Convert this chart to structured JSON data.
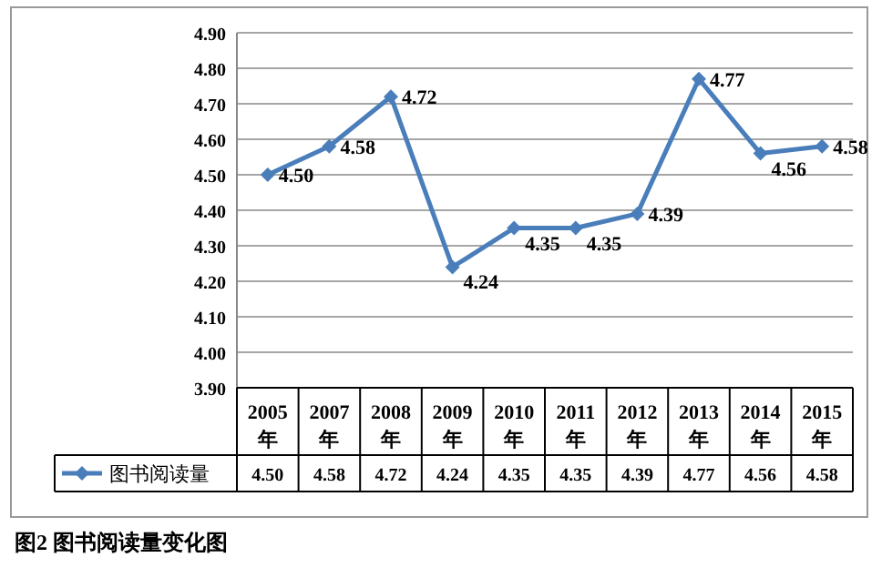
{
  "chart_data": {
    "type": "line",
    "categories": [
      "2005年",
      "2007年",
      "2008年",
      "2009年",
      "2010年",
      "2011年",
      "2012年",
      "2013年",
      "2014年",
      "2015年"
    ],
    "series": [
      {
        "name": "图书阅读量",
        "color": "#4a7ebb",
        "values": [
          4.5,
          4.58,
          4.72,
          4.24,
          4.35,
          4.35,
          4.39,
          4.77,
          4.56,
          4.58
        ]
      }
    ],
    "ylim": [
      3.9,
      4.9
    ],
    "yticks": [
      {
        "value": 3.9,
        "label": "3.90"
      },
      {
        "value": 4.0,
        "label": "4.00"
      },
      {
        "value": 4.1,
        "label": "4.10"
      },
      {
        "value": 4.2,
        "label": "4.20"
      },
      {
        "value": 4.3,
        "label": "4.30"
      },
      {
        "value": 4.4,
        "label": "4.40"
      },
      {
        "value": 4.5,
        "label": "4.50"
      },
      {
        "value": 4.6,
        "label": "4.60"
      },
      {
        "value": 4.7,
        "label": "4.70"
      },
      {
        "value": 4.8,
        "label": "4.80"
      },
      {
        "value": 4.9,
        "label": "4.90"
      }
    ],
    "value_labels": [
      "4.50",
      "4.58",
      "4.72",
      "4.24",
      "4.35",
      "4.35",
      "4.39",
      "4.77",
      "4.56",
      "4.58"
    ],
    "grid": "y",
    "marker": "diamond",
    "line_style": "solid",
    "legend": "bottom left",
    "annotations": [
      "图2  图书阅读量变化图"
    ]
  }
}
